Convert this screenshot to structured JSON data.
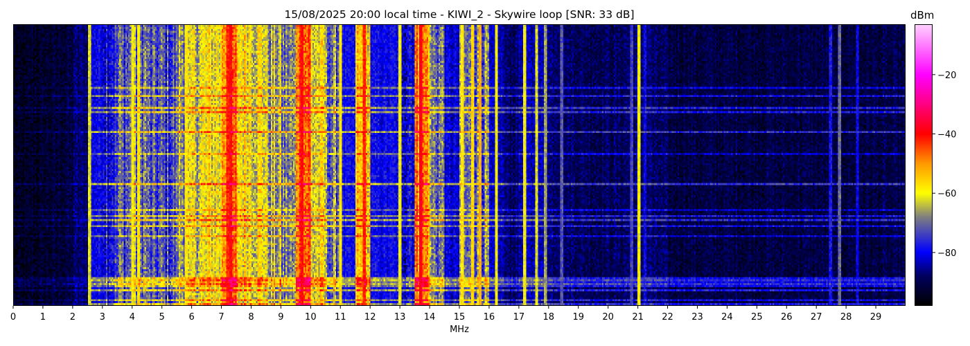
{
  "chart_data": {
    "type": "heatmap",
    "title": "15/08/2025 20:00 local time - KIWI_2 - Skywire loop [SNR: 33 dB]",
    "xlabel": "MHz",
    "ylabel": "",
    "xlim": [
      0,
      30
    ],
    "x_ticks": [
      "0",
      "1",
      "2",
      "3",
      "4",
      "5",
      "6",
      "7",
      "8",
      "9",
      "10",
      "11",
      "12",
      "13",
      "14",
      "15",
      "16",
      "17",
      "18",
      "19",
      "20",
      "21",
      "22",
      "23",
      "24",
      "25",
      "26",
      "27",
      "28",
      "29"
    ],
    "colorbar": {
      "label": "dBm",
      "range": [
        -98,
        -3
      ],
      "ticks": [
        "-20",
        "-40",
        "-60",
        "-80"
      ],
      "tick_values": [
        -20,
        -40,
        -60,
        -80
      ],
      "colormap": [
        {
          "value": -98,
          "color": "#000000"
        },
        {
          "value": -88,
          "color": "#000060"
        },
        {
          "value": -80,
          "color": "#0000ff"
        },
        {
          "value": -68,
          "color": "#808080"
        },
        {
          "value": -60,
          "color": "#ffff00"
        },
        {
          "value": -50,
          "color": "#ff9900"
        },
        {
          "value": -40,
          "color": "#ff0000"
        },
        {
          "value": -20,
          "color": "#ff00ff"
        },
        {
          "value": -3,
          "color": "#ffd0ff"
        }
      ]
    },
    "frequency_bin_width_mhz": 0.5,
    "mean_level_dbm_by_bin": [
      -95,
      -94,
      -93,
      -92,
      -88,
      -80,
      -77,
      -72,
      -70,
      -74,
      -74,
      -66,
      -62,
      -60,
      -48,
      -58,
      -60,
      -66,
      -70,
      -46,
      -62,
      -70,
      -80,
      -56,
      -80,
      -80,
      -78,
      -50,
      -70,
      -82,
      -72,
      -70,
      -84,
      -88,
      -84,
      -84,
      -87,
      -88,
      -89,
      -89,
      -89,
      -88,
      -87,
      -89,
      -91,
      -91,
      -91,
      -91,
      -91,
      -91,
      -91,
      -91,
      -91,
      -91,
      -91,
      -91,
      -91,
      -91,
      -91,
      -91
    ],
    "strong_signals": [
      {
        "mhz": 2.55,
        "dbm": -62
      },
      {
        "mhz": 4.0,
        "dbm": -60
      },
      {
        "mhz": 4.2,
        "dbm": -58
      },
      {
        "mhz": 5.8,
        "dbm": -58
      },
      {
        "mhz": 7.2,
        "dbm": -42
      },
      {
        "mhz": 7.3,
        "dbm": -40
      },
      {
        "mhz": 9.7,
        "dbm": -40
      },
      {
        "mhz": 11.0,
        "dbm": -58
      },
      {
        "mhz": 11.8,
        "dbm": -42
      },
      {
        "mhz": 13.0,
        "dbm": -60
      },
      {
        "mhz": 13.7,
        "dbm": -38
      },
      {
        "mhz": 15.1,
        "dbm": -58
      },
      {
        "mhz": 15.45,
        "dbm": -56
      },
      {
        "mhz": 15.7,
        "dbm": -52
      },
      {
        "mhz": 16.25,
        "dbm": -60
      },
      {
        "mhz": 17.2,
        "dbm": -60
      },
      {
        "mhz": 17.6,
        "dbm": -62
      },
      {
        "mhz": 17.9,
        "dbm": -66
      },
      {
        "mhz": 18.45,
        "dbm": -72
      },
      {
        "mhz": 20.8,
        "dbm": -74
      },
      {
        "mhz": 21.05,
        "dbm": -60
      },
      {
        "mhz": 21.25,
        "dbm": -80
      },
      {
        "mhz": 27.5,
        "dbm": -78
      },
      {
        "mhz": 27.8,
        "dbm": -70
      },
      {
        "mhz": 28.4,
        "dbm": -80
      }
    ]
  }
}
